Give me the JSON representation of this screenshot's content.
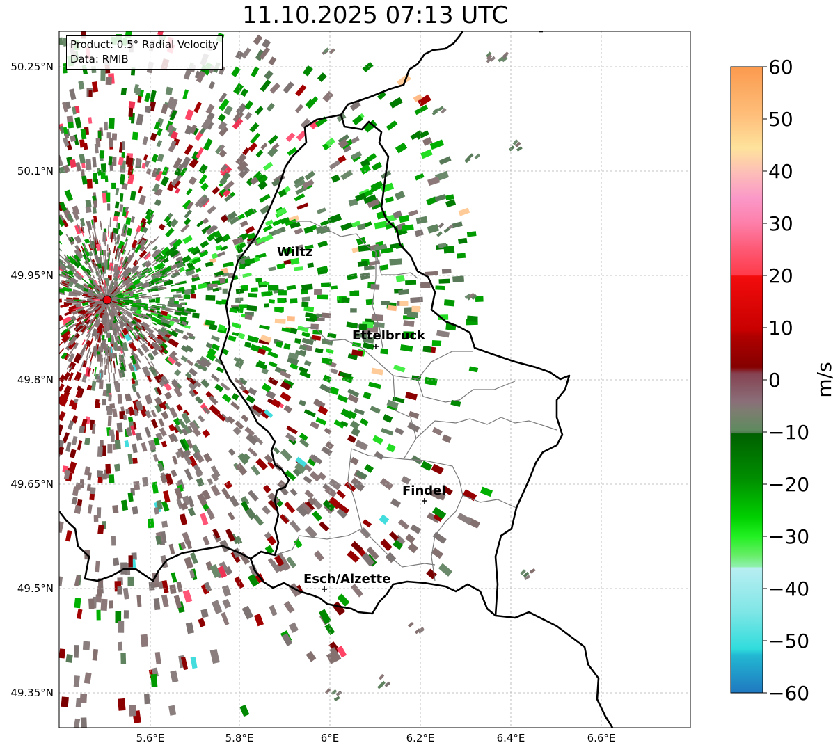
{
  "title": "11.10.2025 07:13 UTC",
  "info": {
    "product": "Product: 0.5° Radial Velocity",
    "data_source": "Data: RMIB"
  },
  "axes": {
    "lon_ticks": [
      "5.6°E",
      "5.8°E",
      "6°E",
      "6.2°E",
      "6.4°E",
      "6.6°E"
    ],
    "lat_ticks": [
      "50.25°N",
      "50.1°N",
      "49.95°N",
      "49.8°N",
      "49.65°N",
      "49.5°N",
      "49.35°N"
    ]
  },
  "cities": [
    {
      "name": "Wiltz"
    },
    {
      "name": "Ettelbruck"
    },
    {
      "name": "Findel"
    },
    {
      "name": "Esch/Alzette"
    }
  ],
  "radar_site": {
    "marker_color": "#e8000b"
  },
  "colorbar": {
    "label": "m/s",
    "ticks": [
      "60",
      "50",
      "40",
      "30",
      "20",
      "10",
      "0",
      "−10",
      "−20",
      "−30",
      "−40",
      "−50",
      "−60"
    ],
    "range": [
      -60,
      60
    ]
  }
}
